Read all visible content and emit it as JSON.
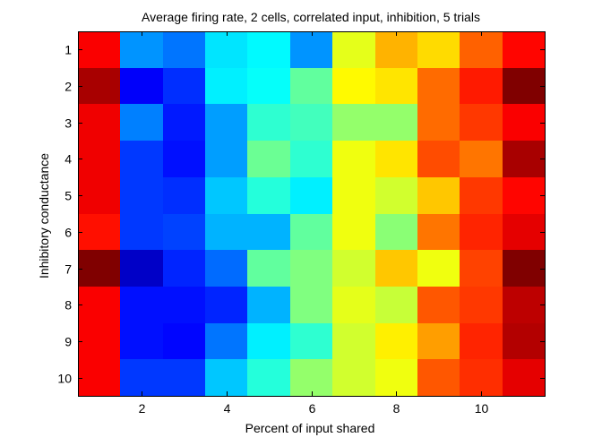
{
  "chart_data": {
    "type": "heatmap",
    "title": "Average firing rate, 2 cells, correlated input, inhibition, 5 trials",
    "xlabel": "Percent of input shared",
    "ylabel": "Inhibitory conductance",
    "x": [
      1,
      2,
      3,
      4,
      5,
      6,
      7,
      8,
      9,
      10,
      11
    ],
    "y": [
      1,
      2,
      3,
      4,
      5,
      6,
      7,
      8,
      9,
      10
    ],
    "xticks": [
      2,
      4,
      6,
      8,
      10
    ],
    "yticks": [
      1,
      2,
      3,
      4,
      5,
      6,
      7,
      8,
      9,
      10
    ],
    "xlim": [
      0.5,
      11.5
    ],
    "ylim": [
      0.5,
      10.5
    ],
    "y_direction": "reverse",
    "colormap": "jet",
    "clim": [
      0,
      1
    ],
    "grid": false,
    "legend": "none",
    "values": [
      [
        0.88,
        0.27,
        0.24,
        0.35,
        0.37,
        0.27,
        0.6,
        0.7,
        0.66,
        0.78,
        0.87
      ],
      [
        0.96,
        0.12,
        0.17,
        0.36,
        0.38,
        0.47,
        0.63,
        0.65,
        0.77,
        0.85,
        1.0
      ],
      [
        0.89,
        0.25,
        0.15,
        0.28,
        0.42,
        0.44,
        0.52,
        0.52,
        0.77,
        0.82,
        0.88
      ],
      [
        0.89,
        0.18,
        0.14,
        0.28,
        0.48,
        0.42,
        0.61,
        0.65,
        0.8,
        0.76,
        0.96
      ],
      [
        0.89,
        0.18,
        0.17,
        0.32,
        0.41,
        0.36,
        0.61,
        0.58,
        0.68,
        0.82,
        0.87
      ],
      [
        0.86,
        0.18,
        0.19,
        0.3,
        0.3,
        0.47,
        0.61,
        0.51,
        0.76,
        0.84,
        0.9
      ],
      [
        1.0,
        0.07,
        0.16,
        0.23,
        0.47,
        0.5,
        0.58,
        0.68,
        0.61,
        0.81,
        1.0
      ],
      [
        0.88,
        0.14,
        0.14,
        0.16,
        0.3,
        0.5,
        0.6,
        0.57,
        0.79,
        0.82,
        0.94
      ],
      [
        0.88,
        0.14,
        0.13,
        0.24,
        0.36,
        0.42,
        0.58,
        0.64,
        0.72,
        0.84,
        0.95
      ],
      [
        0.88,
        0.18,
        0.18,
        0.32,
        0.41,
        0.52,
        0.58,
        0.61,
        0.79,
        0.83,
        0.9
      ]
    ]
  }
}
